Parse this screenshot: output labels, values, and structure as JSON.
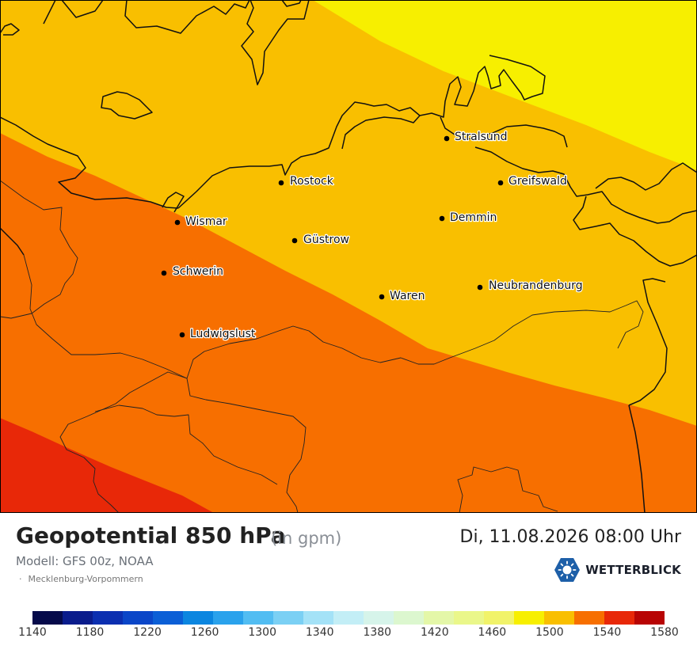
{
  "map": {
    "bands": [
      {
        "value_range": "1500-1520",
        "color": "#f7ef00"
      },
      {
        "value_range": "1520-1540",
        "color": "#f9bf00"
      },
      {
        "value_range": "1540-1560",
        "color": "#f76f00"
      },
      {
        "value_range": "1560-1580",
        "color": "#e82808"
      }
    ],
    "cities": [
      {
        "name": "Stralsund"
      },
      {
        "name": "Greifswald"
      },
      {
        "name": "Rostock"
      },
      {
        "name": "Wismar"
      },
      {
        "name": "Demmin"
      },
      {
        "name": "Güstrow"
      },
      {
        "name": "Schwerin"
      },
      {
        "name": "Neubrandenburg"
      },
      {
        "name": "Waren"
      },
      {
        "name": "Ludwigslust"
      }
    ]
  },
  "header": {
    "title": "Geopotential 850 hPa",
    "unit": "(in gpm)",
    "datetime": "Di, 11.08.2026 08:00 Uhr",
    "model": "Modell: GFS 00z, NOAA",
    "region": "Mecklenburg-Vorpommern"
  },
  "brand": {
    "name": "WETTERBLICK",
    "logo_icon": "hexagon-sun-icon",
    "color": "#1d5fa8"
  },
  "colorbar": {
    "ticks": [
      "1140",
      "1180",
      "1220",
      "1260",
      "1300",
      "1340",
      "1380",
      "1420",
      "1460",
      "1500",
      "1540",
      "1580"
    ],
    "colors": [
      "#050a4a",
      "#0a1c8c",
      "#0b2fb0",
      "#0a46c8",
      "#0b5fd6",
      "#0b86e0",
      "#2aa2ec",
      "#52bdf2",
      "#7bd0f4",
      "#a4e2f7",
      "#c3eef6",
      "#d6f4ea",
      "#dcf7cf",
      "#e4f7a8",
      "#eaf78a",
      "#f1f36a",
      "#f7ef00",
      "#f9bf00",
      "#f76f00",
      "#e82808",
      "#b80404"
    ]
  }
}
